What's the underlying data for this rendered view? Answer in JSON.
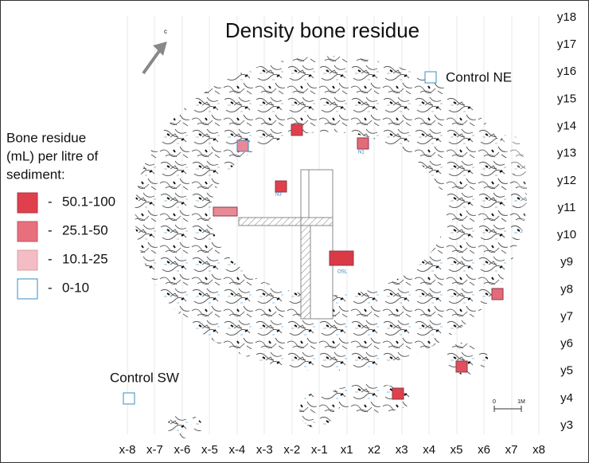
{
  "header": {
    "title": "Density bone residue"
  },
  "north": "c",
  "legend": {
    "title_lines": [
      "Bone residue",
      "(mL) per litre of",
      "sediment:"
    ],
    "items": [
      {
        "dash": "-",
        "label": "50.1-100"
      },
      {
        "dash": "-",
        "label": "25.1-50"
      },
      {
        "dash": "-",
        "label": "10.1-25"
      },
      {
        "dash": "-",
        "label": "0-10"
      }
    ]
  },
  "controls": [
    "Control NE",
    "Control SW"
  ],
  "features": [
    "N3",
    "N1",
    "OSL"
  ],
  "scale": [
    "0",
    "1M"
  ],
  "x_grid": [
    "x-8",
    "x-7",
    "x-6",
    "x-5",
    "x-4",
    "x-3",
    "x-2",
    "x-1",
    "x1",
    "x2",
    "x3",
    "x4",
    "x5",
    "x6",
    "x7",
    "x8"
  ],
  "y_grid": [
    "y18",
    "y17",
    "y16",
    "y15",
    "y14",
    "y13",
    "y12",
    "y11",
    "y10",
    "y9",
    "y8",
    "y7",
    "y6",
    "y5",
    "y4",
    "y3"
  ]
}
